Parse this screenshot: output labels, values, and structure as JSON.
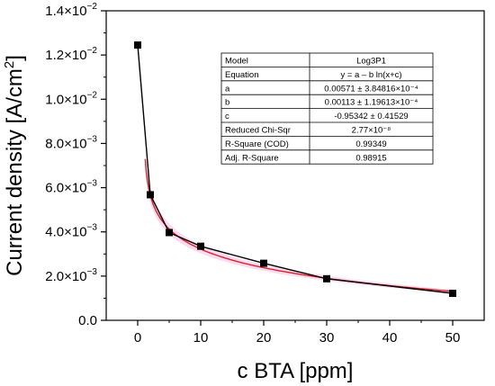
{
  "chart_data": {
    "type": "scatter",
    "xlabel": "c BTA [ppm]",
    "ylabel_main": "Current density [A/cm",
    "ylabel_sup": "2",
    "ylabel_end": "]",
    "xlim": [
      -5,
      55
    ],
    "ylim": [
      0,
      0.014
    ],
    "x_ticks": [
      0,
      10,
      20,
      30,
      40,
      50
    ],
    "x_tick_labels": [
      "0",
      "10",
      "20",
      "30",
      "40",
      "50"
    ],
    "y_ticks": [
      {
        "value": 0,
        "mantissa": "0.0",
        "exp": ""
      },
      {
        "value": 0.002,
        "mantissa": "2.0×10",
        "exp": "−3"
      },
      {
        "value": 0.004,
        "mantissa": "4.0×10",
        "exp": "−3"
      },
      {
        "value": 0.006,
        "mantissa": "6.0×10",
        "exp": "−3"
      },
      {
        "value": 0.008,
        "mantissa": "8.0×10",
        "exp": "−3"
      },
      {
        "value": 0.01,
        "mantissa": "1.0×10",
        "exp": "−2"
      },
      {
        "value": 0.012,
        "mantissa": "1.2×10",
        "exp": "−2"
      },
      {
        "value": 0.014,
        "mantissa": "1.4×10",
        "exp": "−2"
      }
    ],
    "series": [
      {
        "x": [
          0,
          2,
          5,
          10,
          20,
          30,
          50
        ],
        "y": [
          0.01245,
          0.00568,
          0.00397,
          0.00335,
          0.00258,
          0.00188,
          0.00122
        ],
        "color": "#000000",
        "marker": "square"
      }
    ],
    "fit": {
      "model": "Log3P1",
      "a": 0.00571,
      "b": 0.00113,
      "c": -0.95342,
      "color": "#d62728",
      "band_color": "#ffd6f0"
    },
    "table": [
      [
        "Model",
        "Log3P1"
      ],
      [
        "Equation",
        "y = a – b ln(x+c)"
      ],
      [
        "a",
        "0.00571 ± 3.84816×10⁻⁴"
      ],
      [
        "b",
        "0.00113 ± 1.19613×10⁻⁴"
      ],
      [
        "c",
        "-0.95342 ± 0.41529"
      ],
      [
        "Reduced Chi-Sqr",
        "2.77×10⁻⁸"
      ],
      [
        "R-Square (COD)",
        "0.99349"
      ],
      [
        "Adj. R-Square",
        "0.98915"
      ]
    ]
  }
}
